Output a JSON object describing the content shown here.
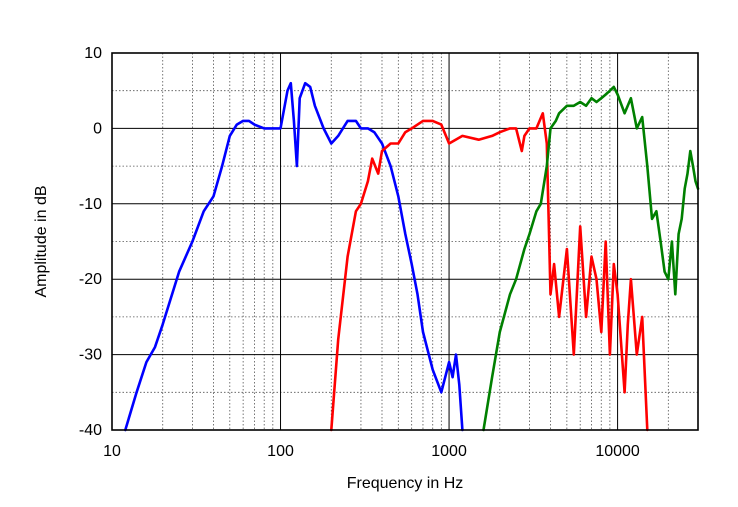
{
  "chart_data": {
    "type": "line",
    "xlabel": "Frequency  in Hz",
    "ylabel": "Amplitude in dB",
    "xscale": "log",
    "xlim": [
      10,
      30000
    ],
    "ylim": [
      -40,
      10
    ],
    "xticks": [
      10,
      100,
      1000,
      10000
    ],
    "xtick_labels": [
      "10",
      "100",
      "1000",
      "10000"
    ],
    "yticks": [
      10,
      0,
      -10,
      -20,
      -30,
      -40
    ],
    "ytick_labels": [
      "10",
      "0",
      "-10",
      "-20",
      "-30",
      "-40"
    ],
    "grid": true,
    "series": [
      {
        "color": "#0000ff",
        "x": [
          12,
          14,
          16,
          18,
          20,
          25,
          30,
          35,
          40,
          45,
          50,
          55,
          60,
          65,
          70,
          80,
          90,
          100,
          110,
          115,
          120,
          125,
          130,
          140,
          150,
          160,
          180,
          200,
          220,
          250,
          280,
          300,
          330,
          360,
          400,
          450,
          500,
          550,
          600,
          650,
          700,
          800,
          900,
          1000,
          1050,
          1100,
          1150,
          1200
        ],
        "y": [
          -40,
          -35,
          -31,
          -29,
          -26,
          -19,
          -15,
          -11,
          -9,
          -5,
          -1,
          0.5,
          1,
          1,
          0.5,
          0,
          0,
          0,
          5,
          6,
          1,
          -5,
          4,
          6,
          5.5,
          3,
          0,
          -2,
          -1,
          1,
          1,
          0,
          0,
          -0.5,
          -2,
          -5,
          -9,
          -14,
          -18,
          -22,
          -27,
          -32,
          -35,
          -31,
          -33,
          -30,
          -34,
          -40
        ]
      },
      {
        "color": "#ff0000",
        "x": [
          200,
          220,
          250,
          280,
          300,
          330,
          350,
          380,
          400,
          450,
          500,
          550,
          600,
          700,
          800,
          900,
          1000,
          1200,
          1500,
          1800,
          2000,
          2300,
          2500,
          2700,
          2800,
          3000,
          3300,
          3600,
          3800,
          4000,
          4200,
          4500,
          5000,
          5500,
          6000,
          6500,
          7000,
          7500,
          8000,
          8500,
          9000,
          9500,
          10000,
          11000,
          11500,
          12000,
          13000,
          14000,
          15000
        ],
        "y": [
          -40,
          -28,
          -17,
          -11,
          -10,
          -7,
          -4,
          -6,
          -3,
          -2,
          -2,
          -0.5,
          0,
          1,
          1,
          0.5,
          -2,
          -1,
          -1.5,
          -1,
          -0.5,
          0,
          0,
          -3,
          -1,
          0,
          0,
          2,
          -2,
          -22,
          -18,
          -25,
          -16,
          -30,
          -13,
          -25,
          -17,
          -20,
          -27,
          -15,
          -30,
          -18,
          -22,
          -35,
          -26,
          -20,
          -30,
          -25,
          -40
        ]
      },
      {
        "color": "#008000",
        "x": [
          1600,
          1800,
          2000,
          2300,
          2500,
          2800,
          3000,
          3300,
          3500,
          3800,
          4000,
          4300,
          4500,
          5000,
          5500,
          6000,
          6500,
          7000,
          7500,
          8000,
          8500,
          9000,
          9500,
          10000,
          11000,
          12000,
          13000,
          14000,
          15000,
          16000,
          17000,
          18000,
          19000,
          20000,
          21000,
          22000,
          23000,
          24000,
          25000,
          26000,
          27000,
          28000,
          29000,
          30000
        ],
        "y": [
          -40,
          -33,
          -27,
          -22,
          -20,
          -16,
          -14,
          -11,
          -10,
          -5,
          0,
          1,
          2,
          3,
          3,
          3.5,
          3,
          4,
          3.5,
          4,
          4.5,
          5,
          5.5,
          4.5,
          2,
          4,
          0,
          1.5,
          -5,
          -12,
          -11,
          -15,
          -19,
          -20,
          -15,
          -22,
          -14,
          -12,
          -8,
          -6,
          -3,
          -5,
          -7,
          -8
        ]
      }
    ]
  }
}
